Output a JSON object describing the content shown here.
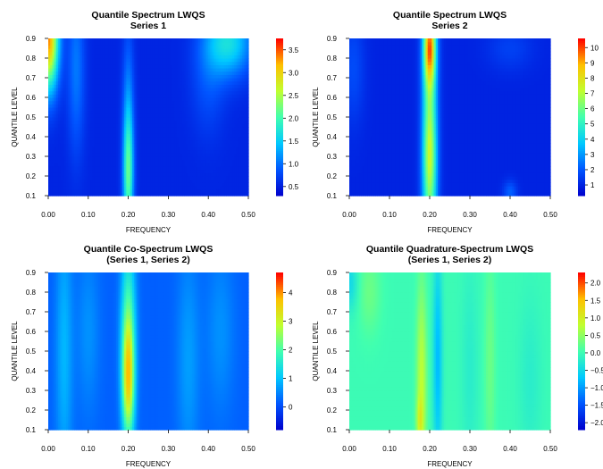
{
  "chart_data": [
    {
      "type": "heatmap",
      "title": "Quantile Spectrum LWQS",
      "subtitle": "Series 1",
      "xlabel": "FREQUENCY",
      "ylabel": "QUANTILE LEVEL",
      "xlim": [
        0,
        0.5
      ],
      "ylim": [
        0.1,
        0.9
      ],
      "x_ticks": [
        "0.00",
        "0.10",
        "0.20",
        "0.30",
        "0.40",
        "0.50"
      ],
      "y_ticks": [
        "0.1",
        "0.2",
        "0.3",
        "0.4",
        "0.5",
        "0.6",
        "0.7",
        "0.8",
        "0.9"
      ],
      "colorbar": {
        "min": 0.3,
        "max": 3.75,
        "ticks": [
          "0.5",
          "1.0",
          "1.5",
          "2.0",
          "2.5",
          "3.0",
          "3.5"
        ]
      },
      "colormap": [
        "#0000cc",
        "#0055ff",
        "#00c8ff",
        "#40ffb0",
        "#c0ff30",
        "#ffc000",
        "#ff0000"
      ],
      "features": [
        {
          "x": 0.0,
          "y": 0.9,
          "sx": 0.018,
          "sy": 0.18,
          "amp": 2.8
        },
        {
          "x": 0.07,
          "y": 0.75,
          "sx": 0.015,
          "sy": 0.3,
          "amp": 0.5
        },
        {
          "x": 0.2,
          "y": 0.2,
          "sx": 0.009,
          "sy": 0.22,
          "amp": 1.4
        },
        {
          "x": 0.2,
          "y": 0.55,
          "sx": 0.01,
          "sy": 0.3,
          "amp": 0.5
        },
        {
          "x": 0.45,
          "y": 0.88,
          "sx": 0.04,
          "sy": 0.12,
          "amp": 1.1
        },
        {
          "x": 0.4,
          "y": 0.7,
          "sx": 0.03,
          "sy": 0.2,
          "amp": 0.3
        }
      ],
      "base": 0.55
    },
    {
      "type": "heatmap",
      "title": "Quantile Spectrum LWQS",
      "subtitle": "Series 2",
      "xlabel": "FREQUENCY",
      "ylabel": "QUANTILE LEVEL",
      "xlim": [
        0,
        0.5
      ],
      "ylim": [
        0.1,
        0.9
      ],
      "x_ticks": [
        "0.00",
        "0.10",
        "0.20",
        "0.30",
        "0.40",
        "0.50"
      ],
      "y_ticks": [
        "0.1",
        "0.2",
        "0.3",
        "0.4",
        "0.5",
        "0.6",
        "0.7",
        "0.8",
        "0.9"
      ],
      "colorbar": {
        "min": 0.3,
        "max": 10.6,
        "ticks": [
          "1",
          "2",
          "3",
          "4",
          "5",
          "6",
          "7",
          "8",
          "9",
          "10"
        ]
      },
      "colormap": [
        "#0000cc",
        "#0055ff",
        "#00c8ff",
        "#40ffb0",
        "#c0ff30",
        "#ffc000",
        "#ff0000"
      ],
      "features": [
        {
          "x": 0.2,
          "y": 0.5,
          "sx": 0.013,
          "sy": 0.9,
          "amp": 5.0
        },
        {
          "x": 0.2,
          "y": 0.85,
          "sx": 0.01,
          "sy": 0.12,
          "amp": 4.5
        },
        {
          "x": 0.2,
          "y": 0.3,
          "sx": 0.012,
          "sy": 0.15,
          "amp": 1.5
        },
        {
          "x": 0.4,
          "y": 0.12,
          "sx": 0.012,
          "sy": 0.04,
          "amp": 1.2
        },
        {
          "x": 0.4,
          "y": 0.85,
          "sx": 0.04,
          "sy": 0.08,
          "amp": 0.6
        },
        {
          "x": 0.01,
          "y": 0.75,
          "sx": 0.02,
          "sy": 0.2,
          "amp": 0.8
        }
      ],
      "base": 1.0
    },
    {
      "type": "heatmap",
      "title": "Quantile Co-Spectrum LWQS",
      "subtitle": "(Series 1, Series 2)",
      "xlabel": "FREQUENCY",
      "ylabel": "QUANTILE LEVEL",
      "xlim": [
        0,
        0.5
      ],
      "ylim": [
        0.1,
        0.9
      ],
      "x_ticks": [
        "0.00",
        "0.10",
        "0.20",
        "0.30",
        "0.40",
        "0.50"
      ],
      "y_ticks": [
        "0.1",
        "0.2",
        "0.3",
        "0.4",
        "0.5",
        "0.6",
        "0.7",
        "0.8",
        "0.9"
      ],
      "colorbar": {
        "min": -0.8,
        "max": 4.7,
        "ticks": [
          "0",
          "1",
          "2",
          "3",
          "4"
        ]
      },
      "colormap": [
        "#0000cc",
        "#0055ff",
        "#00c8ff",
        "#40ffb0",
        "#c0ff30",
        "#ffc000",
        "#ff0000"
      ],
      "features": [
        {
          "x": 0.2,
          "y": 0.35,
          "sx": 0.011,
          "sy": 0.22,
          "amp": 2.9
        },
        {
          "x": 0.2,
          "y": 0.7,
          "sx": 0.013,
          "sy": 0.3,
          "amp": 1.4
        },
        {
          "x": 0.04,
          "y": 0.5,
          "sx": 0.015,
          "sy": 0.5,
          "amp": 0.7
        },
        {
          "x": 0.1,
          "y": 0.6,
          "sx": 0.02,
          "sy": 0.3,
          "amp": 0.4
        },
        {
          "x": 0.35,
          "y": 0.45,
          "sx": 0.02,
          "sy": 0.4,
          "amp": 0.5
        },
        {
          "x": 0.43,
          "y": 0.6,
          "sx": 0.025,
          "sy": 0.3,
          "amp": 0.4
        }
      ],
      "base": 0.2
    },
    {
      "type": "heatmap",
      "title": "Quantile Quadrature-Spectrum LWQS",
      "subtitle": "(Series 1, Series 2)",
      "xlabel": "FREQUENCY",
      "ylabel": "QUANTILE LEVEL",
      "xlim": [
        0,
        0.5
      ],
      "ylim": [
        0.1,
        0.9
      ],
      "x_ticks": [
        "0.00",
        "0.10",
        "0.20",
        "0.30",
        "0.40",
        "0.50"
      ],
      "y_ticks": [
        "0.1",
        "0.2",
        "0.3",
        "0.4",
        "0.5",
        "0.6",
        "0.7",
        "0.8",
        "0.9"
      ],
      "colorbar": {
        "min": -2.2,
        "max": 2.3,
        "ticks": [
          "2.0",
          "1.5",
          "1.0",
          "0.5",
          "0.0",
          "−0.5",
          "−1.0",
          "−1.5",
          "−2.0"
        ]
      },
      "colormap": [
        "#0000cc",
        "#0055ff",
        "#00c8ff",
        "#40ffb0",
        "#c0ff30",
        "#ffc000",
        "#ff0000"
      ],
      "features": [
        {
          "x": 0.18,
          "y": 0.35,
          "sx": 0.009,
          "sy": 0.35,
          "amp": 0.8
        },
        {
          "x": 0.175,
          "y": 0.15,
          "sx": 0.006,
          "sy": 0.08,
          "amp": 0.5
        },
        {
          "x": 0.22,
          "y": 0.45,
          "sx": 0.008,
          "sy": 0.4,
          "amp": -0.8
        },
        {
          "x": 0.05,
          "y": 0.8,
          "sx": 0.02,
          "sy": 0.15,
          "amp": 0.3
        },
        {
          "x": 0.35,
          "y": 0.45,
          "sx": 0.01,
          "sy": 0.4,
          "amp": 0.3
        },
        {
          "x": 0.3,
          "y": 0.4,
          "sx": 0.015,
          "sy": 0.4,
          "amp": -0.2
        },
        {
          "x": 0.0,
          "y": 0.85,
          "sx": 0.015,
          "sy": 0.1,
          "amp": -0.5
        },
        {
          "x": 0.45,
          "y": 0.35,
          "sx": 0.02,
          "sy": 0.3,
          "amp": -0.2
        }
      ],
      "base": 0.0
    }
  ]
}
